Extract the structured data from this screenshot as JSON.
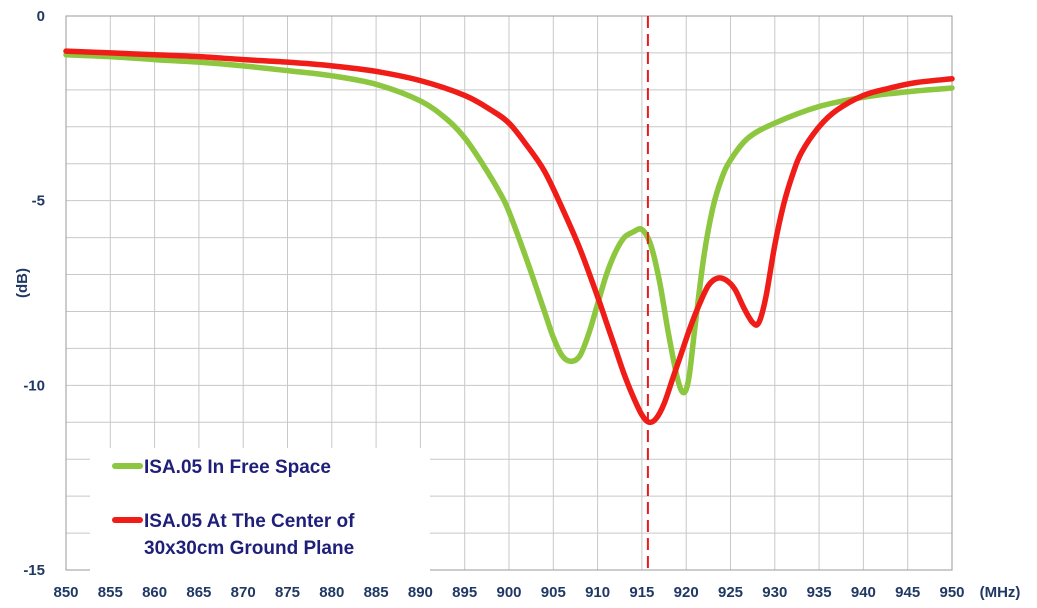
{
  "chart_data": {
    "type": "line",
    "title": "",
    "xlabel": "(MHz)",
    "ylabel": "(dB)",
    "xlim": [
      850,
      950
    ],
    "ylim": [
      -15,
      0
    ],
    "x_ticks": [
      "850",
      "855",
      "860",
      "865",
      "870",
      "875",
      "880",
      "885",
      "890",
      "895",
      "900",
      "905",
      "910",
      "915",
      "920",
      "925",
      "930",
      "935",
      "940",
      "945",
      "950"
    ],
    "y_ticks": [
      "0",
      "-5",
      "-10",
      "-15"
    ],
    "grid": true,
    "legend_placement": "bottom-left",
    "marker_line": {
      "x": 915,
      "style": "dashed",
      "color": "#e8191f"
    },
    "series": [
      {
        "name": "ISA.05 In Free Space",
        "color": "#8dc63f",
        "points": [
          [
            850,
            -1.05
          ],
          [
            855,
            -1.1
          ],
          [
            860,
            -1.18
          ],
          [
            865,
            -1.25
          ],
          [
            870,
            -1.35
          ],
          [
            875,
            -1.48
          ],
          [
            880,
            -1.62
          ],
          [
            885,
            -1.85
          ],
          [
            890,
            -2.3
          ],
          [
            893,
            -2.8
          ],
          [
            895,
            -3.3
          ],
          [
            897,
            -4.0
          ],
          [
            899,
            -4.8
          ],
          [
            900,
            -5.3
          ],
          [
            902,
            -6.6
          ],
          [
            904,
            -8.0
          ],
          [
            905,
            -8.7
          ],
          [
            906,
            -9.2
          ],
          [
            907,
            -9.35
          ],
          [
            908,
            -9.2
          ],
          [
            909,
            -8.6
          ],
          [
            910,
            -7.8
          ],
          [
            911,
            -7.0
          ],
          [
            912,
            -6.4
          ],
          [
            913,
            -6.0
          ],
          [
            914,
            -5.85
          ],
          [
            915,
            -5.78
          ],
          [
            916,
            -6.2
          ],
          [
            917,
            -7.2
          ],
          [
            918,
            -8.6
          ],
          [
            919,
            -9.8
          ],
          [
            919.7,
            -10.2
          ],
          [
            920.3,
            -9.8
          ],
          [
            921,
            -8.4
          ],
          [
            922,
            -6.5
          ],
          [
            923,
            -5.2
          ],
          [
            924,
            -4.4
          ],
          [
            925,
            -3.9
          ],
          [
            927,
            -3.3
          ],
          [
            930,
            -2.9
          ],
          [
            935,
            -2.45
          ],
          [
            940,
            -2.2
          ],
          [
            945,
            -2.05
          ],
          [
            950,
            -1.95
          ]
        ]
      },
      {
        "name": "ISA.05 At The Center of 30x30cm Ground Plane",
        "color": "#f01c17",
        "points": [
          [
            850,
            -0.95
          ],
          [
            855,
            -1.0
          ],
          [
            860,
            -1.05
          ],
          [
            865,
            -1.1
          ],
          [
            870,
            -1.18
          ],
          [
            875,
            -1.25
          ],
          [
            880,
            -1.35
          ],
          [
            885,
            -1.5
          ],
          [
            890,
            -1.75
          ],
          [
            895,
            -2.15
          ],
          [
            898,
            -2.55
          ],
          [
            900,
            -2.9
          ],
          [
            902,
            -3.5
          ],
          [
            904,
            -4.2
          ],
          [
            906,
            -5.2
          ],
          [
            908,
            -6.3
          ],
          [
            910,
            -7.6
          ],
          [
            911,
            -8.3
          ],
          [
            912,
            -9.0
          ],
          [
            913,
            -9.7
          ],
          [
            914,
            -10.3
          ],
          [
            915,
            -10.8
          ],
          [
            915.8,
            -11.0
          ],
          [
            916.6,
            -10.9
          ],
          [
            917.5,
            -10.5
          ],
          [
            918.5,
            -9.8
          ],
          [
            919.5,
            -9.1
          ],
          [
            920.5,
            -8.4
          ],
          [
            921.5,
            -7.8
          ],
          [
            922.5,
            -7.3
          ],
          [
            923.5,
            -7.1
          ],
          [
            924.5,
            -7.15
          ],
          [
            925.5,
            -7.4
          ],
          [
            926.5,
            -7.9
          ],
          [
            927.5,
            -8.3
          ],
          [
            928.2,
            -8.3
          ],
          [
            929,
            -7.6
          ],
          [
            930,
            -6.2
          ],
          [
            931,
            -5.1
          ],
          [
            932,
            -4.3
          ],
          [
            933,
            -3.7
          ],
          [
            935,
            -3.0
          ],
          [
            937,
            -2.55
          ],
          [
            940,
            -2.15
          ],
          [
            943,
            -1.95
          ],
          [
            946,
            -1.8
          ],
          [
            950,
            -1.7
          ]
        ]
      }
    ],
    "legend": [
      {
        "lines": [
          "ISA.05 In Free Space"
        ]
      },
      {
        "lines": [
          "ISA.05 At The Center of",
          "30x30cm Ground Plane"
        ]
      }
    ]
  }
}
